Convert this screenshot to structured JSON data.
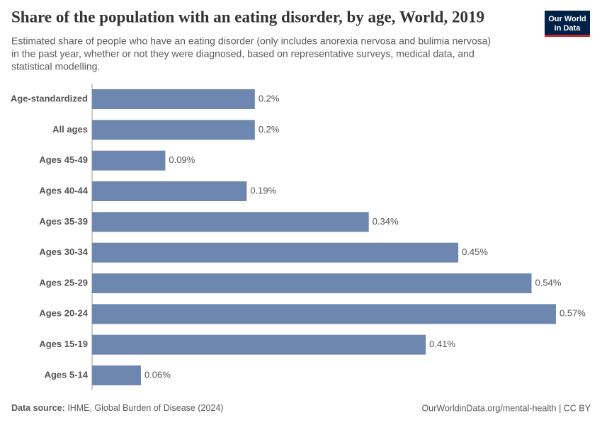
{
  "chart_data": {
    "type": "bar",
    "orientation": "horizontal",
    "title": "Share of the population with an eating disorder, by age, World, 2019",
    "subtitle": [
      "Estimated share of people who have an eating disorder (only includes anorexia nervosa and bulimia nervosa)",
      "in the past year, whether or not they were diagnosed, based on representative surveys, medical data, and",
      "statistical modelling."
    ],
    "categories": [
      "Age-standardized",
      "All ages",
      "Ages 45-49",
      "Ages 40-44",
      "Ages 35-39",
      "Ages 30-34",
      "Ages 25-29",
      "Ages 20-24",
      "Ages 15-19",
      "Ages 5-14"
    ],
    "values": [
      0.2,
      0.2,
      0.09,
      0.19,
      0.34,
      0.45,
      0.54,
      0.57,
      0.41,
      0.06
    ],
    "value_labels": [
      "0.2%",
      "0.2%",
      "0.09%",
      "0.19%",
      "0.34%",
      "0.45%",
      "0.54%",
      "0.57%",
      "0.41%",
      "0.06%"
    ],
    "color": "#6d87b1",
    "source_label": "Data source:",
    "source": "IHME, Global Burden of Disease (2024)",
    "url": "OurWorldinData.org/mental-health | CC BY",
    "logo": [
      "Our World",
      "in Data"
    ]
  }
}
